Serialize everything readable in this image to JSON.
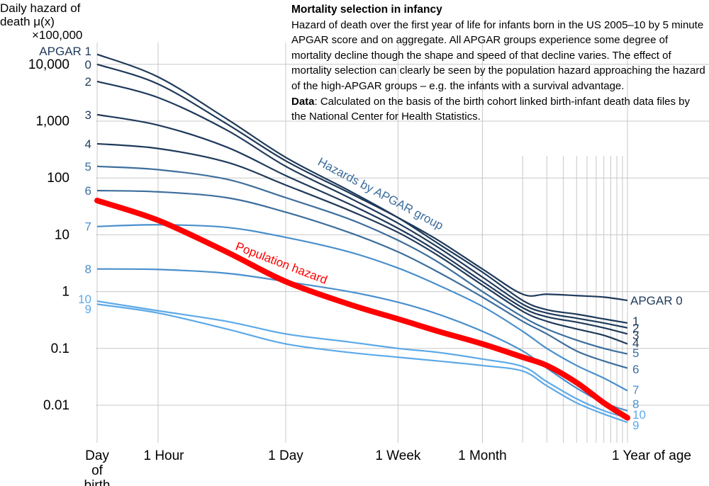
{
  "title": "Mortality selection in infancy",
  "description": "Hazard of death over the first year of life for infants born in the US 2005–10 by 5 minute APGAR score and on aggregate. All APGAR groups experience some degree of mortality decline though the shape and speed of that decline varies. The effect of mortality selection can clearly be seen by the population hazard approaching the hazard of the high-APGAR groups – e.g. the infants with a survival advantage.",
  "data_label": "Data",
  "data_text": ": Calculated on the basis of the birth cohort linked birth-infant death data files by the National Center for Health Statistics.",
  "ylabel_lines": [
    "Daily hazard of",
    "death μ(x)",
    "×100,000"
  ],
  "annotations": {
    "apgar_group": "Hazards by APGAR group",
    "population": "Population hazard",
    "apgar1_prefix": "APGAR 1",
    "apgar0_prefix": "APGAR 0"
  },
  "colors": {
    "population": "#ff0000",
    "grid": "#c8c8c8",
    "apgar_low": "#1f3a5a",
    "apgar_mid": "#3d6e9c",
    "apgar_high": "#5ca9e8"
  },
  "chart_data": {
    "type": "line",
    "title": "Mortality selection in infancy",
    "ylabel": "Daily hazard of death μ(x) ×100,000",
    "xlabel": "",
    "y_scale": "log",
    "x_scale": "log",
    "ylim": [
      0.003,
      30000
    ],
    "y_ticks": [
      {
        "value": 10000,
        "label": "10,000"
      },
      {
        "value": 1000,
        "label": "1,000"
      },
      {
        "value": 100,
        "label": "100"
      },
      {
        "value": 10,
        "label": "10"
      },
      {
        "value": 1,
        "label": "1"
      },
      {
        "value": 0.1,
        "label": "0.1"
      },
      {
        "value": 0.01,
        "label": "0.01"
      }
    ],
    "x_ticks": [
      {
        "value": 0,
        "label": "Day\nof\nbirth"
      },
      {
        "value": 0.0417,
        "label": "1 Hour"
      },
      {
        "value": 1,
        "label": "1 Day"
      },
      {
        "value": 7,
        "label": "1 Week"
      },
      {
        "value": 30,
        "label": "1 Month"
      },
      {
        "value": 365,
        "label": "1 Year of age"
      }
    ],
    "x_unit": "days",
    "month_gridlines_days": [
      30,
      60,
      91,
      121,
      152,
      182,
      213,
      243,
      274,
      304,
      335,
      365
    ],
    "grid": true,
    "x": [
      0,
      0.0417,
      0.25,
      1,
      3,
      7,
      14,
      30,
      60,
      91,
      152,
      243,
      365
    ],
    "series": [
      {
        "name": "0",
        "values": [
          10000,
          4500,
          900,
          200,
          55,
          20,
          8,
          2.5,
          0.9,
          0.9,
          0.85,
          0.8,
          0.7
        ]
      },
      {
        "name": "1",
        "values": [
          15000,
          6000,
          1100,
          230,
          60,
          20,
          7,
          2.2,
          0.7,
          0.48,
          0.4,
          0.33,
          0.28
        ]
      },
      {
        "name": "2",
        "values": [
          5000,
          2600,
          700,
          160,
          45,
          16,
          6,
          1.8,
          0.6,
          0.42,
          0.34,
          0.28,
          0.23
        ]
      },
      {
        "name": "3",
        "values": [
          1300,
          850,
          350,
          110,
          35,
          13,
          5,
          1.5,
          0.52,
          0.36,
          0.29,
          0.23,
          0.18
        ]
      },
      {
        "name": "4",
        "values": [
          400,
          330,
          190,
          75,
          27,
          11,
          4.3,
          1.3,
          0.45,
          0.3,
          0.22,
          0.17,
          0.12
        ]
      },
      {
        "name": "5",
        "values": [
          160,
          140,
          95,
          45,
          19,
          8,
          3.3,
          1.0,
          0.36,
          0.22,
          0.14,
          0.1,
          0.08
        ]
      },
      {
        "name": "6",
        "values": [
          60,
          57,
          45,
          25,
          11,
          5,
          2.2,
          0.8,
          0.3,
          0.18,
          0.09,
          0.06,
          0.045
        ]
      },
      {
        "name": "7",
        "values": [
          14,
          15,
          13.5,
          9,
          5,
          2.6,
          1.3,
          0.55,
          0.2,
          0.1,
          0.05,
          0.03,
          0.018
        ]
      },
      {
        "name": "8",
        "values": [
          2.5,
          2.45,
          2.1,
          1.5,
          1.0,
          0.65,
          0.4,
          0.2,
          0.09,
          0.045,
          0.02,
          0.011,
          0.008
        ]
      },
      {
        "name": "9",
        "values": [
          0.6,
          0.42,
          0.22,
          0.12,
          0.085,
          0.07,
          0.06,
          0.05,
          0.04,
          0.022,
          0.011,
          0.007,
          0.005
        ]
      },
      {
        "name": "10",
        "values": [
          0.68,
          0.46,
          0.3,
          0.18,
          0.13,
          0.1,
          0.085,
          0.065,
          0.048,
          0.026,
          0.013,
          0.008,
          0.006
        ]
      },
      {
        "name": "Population hazard",
        "values": [
          40,
          18,
          5,
          1.5,
          0.6,
          0.33,
          0.2,
          0.12,
          0.07,
          0.05,
          0.025,
          0.011,
          0.006
        ]
      }
    ]
  }
}
